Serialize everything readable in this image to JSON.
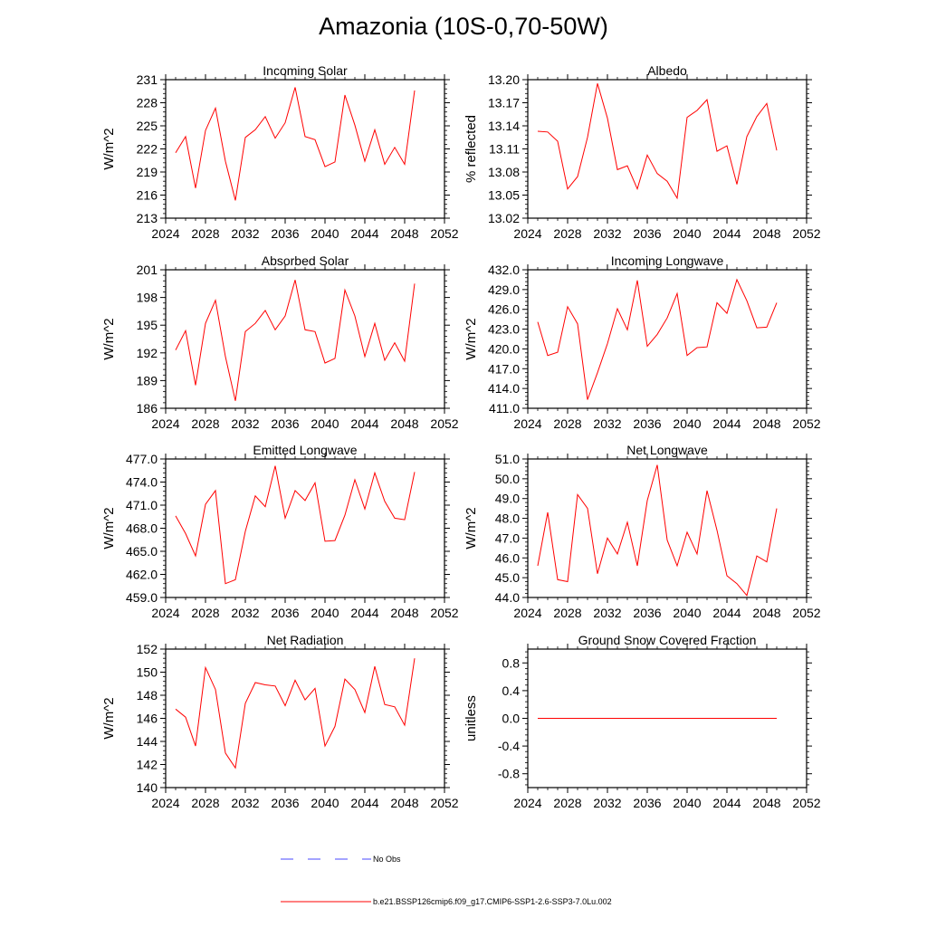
{
  "page_title": "Amazonia (10S-0,70-50W)",
  "colors": {
    "model_line": "#ff0000",
    "obs_line": "#4a4aff",
    "axis": "#000000"
  },
  "legend": {
    "obs_label": "No Obs",
    "model_label": "b.e21.BSSP126cmip6.f09_g17.CMIP6-SSP1-2.6-SSP3-7.0Lu.002"
  },
  "chart_data": [
    {
      "type": "line",
      "title": "Incoming Solar",
      "ylabel": "W/m^2",
      "xlabel": "",
      "xlim": [
        2024,
        2052
      ],
      "ylim": [
        213,
        231
      ],
      "xticks": [
        2024,
        2028,
        2032,
        2036,
        2040,
        2044,
        2048,
        2052
      ],
      "yticks": [
        213,
        216,
        219,
        222,
        225,
        228,
        231
      ],
      "ytick_labels": [
        "213",
        "216",
        "219",
        "222",
        "225",
        "228",
        "231"
      ],
      "x": [
        2025,
        2026,
        2027,
        2028,
        2029,
        2030,
        2031,
        2032,
        2033,
        2034,
        2035,
        2036,
        2037,
        2038,
        2039,
        2040,
        2041,
        2042,
        2043,
        2044,
        2045,
        2046,
        2047,
        2048,
        2049
      ],
      "series": [
        {
          "name": "b.e21.BSSP126cmip6.f09_g17.CMIP6-SSP1-2.6-SSP3-7.0Lu.002",
          "values": [
            221.5,
            223.6,
            216.9,
            224.4,
            227.3,
            220.4,
            215.3,
            223.5,
            224.5,
            226.2,
            223.4,
            225.4,
            230.0,
            223.6,
            223.2,
            219.7,
            220.3,
            229.0,
            225.1,
            220.4,
            224.5,
            220.0,
            222.2,
            220.0,
            229.6
          ]
        }
      ]
    },
    {
      "type": "line",
      "title": "Albedo",
      "ylabel": "% reflected",
      "xlabel": "",
      "xlim": [
        2024,
        2052
      ],
      "ylim": [
        13.02,
        13.2
      ],
      "xticks": [
        2024,
        2028,
        2032,
        2036,
        2040,
        2044,
        2048,
        2052
      ],
      "yticks": [
        13.02,
        13.05,
        13.08,
        13.11,
        13.14,
        13.17,
        13.2
      ],
      "ytick_labels": [
        "13.02",
        "13.05",
        "13.08",
        "13.11",
        "13.14",
        "13.17",
        "13.20"
      ],
      "x": [
        2025,
        2026,
        2027,
        2028,
        2029,
        2030,
        2031,
        2032,
        2033,
        2034,
        2035,
        2036,
        2037,
        2038,
        2039,
        2040,
        2041,
        2042,
        2043,
        2044,
        2045,
        2046,
        2047,
        2048,
        2049
      ],
      "series": [
        {
          "name": "b.e21.BSSP126cmip6.f09_g17.CMIP6-SSP1-2.6-SSP3-7.0Lu.002",
          "values": [
            13.133,
            13.132,
            13.12,
            13.058,
            13.074,
            13.125,
            13.195,
            13.15,
            13.083,
            13.088,
            13.058,
            13.102,
            13.078,
            13.068,
            13.046,
            13.151,
            13.16,
            13.174,
            13.107,
            13.114,
            13.064,
            13.126,
            13.152,
            13.169,
            13.108
          ]
        }
      ]
    },
    {
      "type": "line",
      "title": "Absorbed Solar",
      "ylabel": "W/m^2",
      "xlabel": "",
      "xlim": [
        2024,
        2052
      ],
      "ylim": [
        186,
        201
      ],
      "xticks": [
        2024,
        2028,
        2032,
        2036,
        2040,
        2044,
        2048,
        2052
      ],
      "yticks": [
        186,
        189,
        192,
        195,
        198,
        201
      ],
      "ytick_labels": [
        "186",
        "189",
        "192",
        "195",
        "198",
        "201"
      ],
      "x": [
        2025,
        2026,
        2027,
        2028,
        2029,
        2030,
        2031,
        2032,
        2033,
        2034,
        2035,
        2036,
        2037,
        2038,
        2039,
        2040,
        2041,
        2042,
        2043,
        2044,
        2045,
        2046,
        2047,
        2048,
        2049
      ],
      "series": [
        {
          "name": "b.e21.BSSP126cmip6.f09_g17.CMIP6-SSP1-2.6-SSP3-7.0Lu.002",
          "values": [
            192.3,
            194.4,
            188.5,
            195.2,
            197.7,
            191.6,
            186.8,
            194.3,
            195.2,
            196.6,
            194.5,
            196.0,
            199.9,
            194.5,
            194.3,
            190.9,
            191.4,
            198.8,
            196.0,
            191.6,
            195.2,
            191.2,
            193.1,
            191.1,
            199.5
          ]
        }
      ]
    },
    {
      "type": "line",
      "title": "Incoming Longwave",
      "ylabel": "W/m^2",
      "xlabel": "",
      "xlim": [
        2024,
        2052
      ],
      "ylim": [
        411,
        432
      ],
      "xticks": [
        2024,
        2028,
        2032,
        2036,
        2040,
        2044,
        2048,
        2052
      ],
      "yticks": [
        411,
        414,
        417,
        420,
        423,
        426,
        429,
        432
      ],
      "ytick_labels": [
        "411.0",
        "414.0",
        "417.0",
        "420.0",
        "423.0",
        "426.0",
        "429.0",
        "432.0"
      ],
      "x": [
        2025,
        2026,
        2027,
        2028,
        2029,
        2030,
        2031,
        2032,
        2033,
        2034,
        2035,
        2036,
        2037,
        2038,
        2039,
        2040,
        2041,
        2042,
        2043,
        2044,
        2045,
        2046,
        2047,
        2048,
        2049
      ],
      "series": [
        {
          "name": "b.e21.BSSP126cmip6.f09_g17.CMIP6-SSP1-2.6-SSP3-7.0Lu.002",
          "values": [
            424.1,
            419.0,
            419.5,
            426.4,
            423.8,
            412.3,
            416.4,
            420.8,
            426.1,
            422.9,
            430.4,
            420.4,
            422.2,
            424.7,
            428.4,
            419.0,
            420.2,
            420.3,
            427.0,
            425.4,
            430.5,
            427.3,
            423.2,
            423.3,
            427.0
          ]
        }
      ]
    },
    {
      "type": "line",
      "title": "Emitted Longwave",
      "ylabel": "W/m^2",
      "xlabel": "",
      "xlim": [
        2024,
        2052
      ],
      "ylim": [
        459,
        477
      ],
      "xticks": [
        2024,
        2028,
        2032,
        2036,
        2040,
        2044,
        2048,
        2052
      ],
      "yticks": [
        459,
        462,
        465,
        468,
        471,
        474,
        477
      ],
      "ytick_labels": [
        "459.0",
        "462.0",
        "465.0",
        "468.0",
        "471.0",
        "474.0",
        "477.0"
      ],
      "x": [
        2025,
        2026,
        2027,
        2028,
        2029,
        2030,
        2031,
        2032,
        2033,
        2034,
        2035,
        2036,
        2037,
        2038,
        2039,
        2040,
        2041,
        2042,
        2043,
        2044,
        2045,
        2046,
        2047,
        2048,
        2049
      ],
      "series": [
        {
          "name": "b.e21.BSSP126cmip6.f09_g17.CMIP6-SSP1-2.6-SSP3-7.0Lu.002",
          "values": [
            469.6,
            467.3,
            464.4,
            471.1,
            472.9,
            460.8,
            461.3,
            467.6,
            472.2,
            470.8,
            476.1,
            469.3,
            472.9,
            471.6,
            473.9,
            466.3,
            466.4,
            469.7,
            474.3,
            470.5,
            475.2,
            471.5,
            469.3,
            469.1,
            475.3
          ]
        }
      ]
    },
    {
      "type": "line",
      "title": "Net Longwave",
      "ylabel": "W/m^2",
      "xlabel": "",
      "xlim": [
        2024,
        2052
      ],
      "ylim": [
        44,
        51
      ],
      "xticks": [
        2024,
        2028,
        2032,
        2036,
        2040,
        2044,
        2048,
        2052
      ],
      "yticks": [
        44,
        45,
        46,
        47,
        48,
        49,
        50,
        51
      ],
      "ytick_labels": [
        "44.0",
        "45.0",
        "46.0",
        "47.0",
        "48.0",
        "49.0",
        "50.0",
        "51.0"
      ],
      "x": [
        2025,
        2026,
        2027,
        2028,
        2029,
        2030,
        2031,
        2032,
        2033,
        2034,
        2035,
        2036,
        2037,
        2038,
        2039,
        2040,
        2041,
        2042,
        2043,
        2044,
        2045,
        2046,
        2047,
        2048,
        2049
      ],
      "series": [
        {
          "name": "b.e21.BSSP126cmip6.f09_g17.CMIP6-SSP1-2.6-SSP3-7.0Lu.002",
          "values": [
            45.6,
            48.3,
            44.9,
            44.8,
            49.2,
            48.5,
            45.2,
            47.0,
            46.2,
            47.8,
            45.6,
            48.9,
            50.7,
            46.9,
            45.6,
            47.3,
            46.2,
            49.4,
            47.4,
            45.1,
            44.7,
            44.1,
            46.1,
            45.8,
            48.5
          ]
        }
      ]
    },
    {
      "type": "line",
      "title": "Net Radiation",
      "ylabel": "W/m^2",
      "xlabel": "",
      "xlim": [
        2024,
        2052
      ],
      "ylim": [
        140,
        152
      ],
      "xticks": [
        2024,
        2028,
        2032,
        2036,
        2040,
        2044,
        2048,
        2052
      ],
      "yticks": [
        140,
        142,
        144,
        146,
        148,
        150,
        152
      ],
      "ytick_labels": [
        "140",
        "142",
        "144",
        "146",
        "148",
        "150",
        "152"
      ],
      "x": [
        2025,
        2026,
        2027,
        2028,
        2029,
        2030,
        2031,
        2032,
        2033,
        2034,
        2035,
        2036,
        2037,
        2038,
        2039,
        2040,
        2041,
        2042,
        2043,
        2044,
        2045,
        2046,
        2047,
        2048,
        2049
      ],
      "series": [
        {
          "name": "b.e21.BSSP126cmip6.f09_g17.CMIP6-SSP1-2.6-SSP3-7.0Lu.002",
          "values": [
            146.8,
            146.1,
            143.6,
            150.4,
            148.5,
            143.0,
            141.7,
            147.3,
            149.1,
            148.9,
            148.8,
            147.1,
            149.3,
            147.6,
            148.6,
            143.6,
            145.3,
            149.4,
            148.5,
            146.5,
            150.5,
            147.2,
            147.0,
            145.4,
            151.2
          ]
        }
      ]
    },
    {
      "type": "line",
      "title": "Ground Snow Covered Fraction",
      "ylabel": "unitless",
      "xlabel": "",
      "xlim": [
        2024,
        2052
      ],
      "ylim": [
        -1,
        1
      ],
      "xticks": [
        2024,
        2028,
        2032,
        2036,
        2040,
        2044,
        2048,
        2052
      ],
      "yticks": [
        -0.8,
        -0.4,
        0.0,
        0.4,
        0.8
      ],
      "ytick_labels": [
        "-0.8",
        "-0.4",
        "0.0",
        "0.4",
        "0.8"
      ],
      "x": [
        2025,
        2026,
        2027,
        2028,
        2029,
        2030,
        2031,
        2032,
        2033,
        2034,
        2035,
        2036,
        2037,
        2038,
        2039,
        2040,
        2041,
        2042,
        2043,
        2044,
        2045,
        2046,
        2047,
        2048,
        2049
      ],
      "series": [
        {
          "name": "b.e21.BSSP126cmip6.f09_g17.CMIP6-SSP1-2.6-SSP3-7.0Lu.002",
          "values": [
            0,
            0,
            0,
            0,
            0,
            0,
            0,
            0,
            0,
            0,
            0,
            0,
            0,
            0,
            0,
            0,
            0,
            0,
            0,
            0,
            0,
            0,
            0,
            0,
            0
          ]
        }
      ]
    }
  ]
}
